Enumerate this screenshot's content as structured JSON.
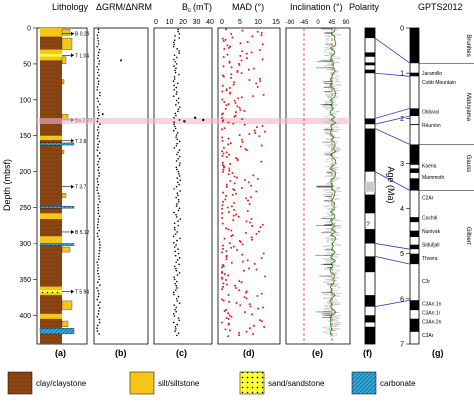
{
  "chart_data": [
    {
      "type": "scatter",
      "panel": "(a)",
      "title": "Lithology",
      "ylabel": "Depth (mbsf)",
      "ylim": [
        0,
        440
      ],
      "yticks": [
        0,
        50,
        100,
        150,
        200,
        250,
        300,
        350,
        400
      ],
      "units": [
        "I",
        "IIA",
        "IIB",
        "III",
        "IV",
        "V"
      ],
      "markers": [
        {
          "label": "B 0.29",
          "depth": 8
        },
        {
          "label": "T 1.04",
          "depth": 38
        },
        {
          "label": "Ba 2.27",
          "depth": 128
        },
        {
          "label": "T 2.8",
          "depth": 157
        },
        {
          "label": "T 3.7",
          "depth": 221
        },
        {
          "label": "B 5.12",
          "depth": 284
        },
        {
          "label": "T 5.94",
          "depth": 367
        }
      ],
      "legend": [
        "clay/claystone",
        "silt/siltstone",
        "sand/sandstone",
        "carbonate"
      ],
      "colors": {
        "clay": "#8B4513",
        "silt": "#F5C518",
        "sand": "#FFFF33",
        "carbonate": "#33A8DC"
      }
    },
    {
      "type": "scatter",
      "panel": "(b)",
      "title": "ΔGRM/ΔNRM",
      "xlim": [
        0,
        1
      ],
      "note": "values near zero; outliers at ~40-50 mbsf",
      "outliers": [
        {
          "x": 0.5,
          "depth": 45
        },
        {
          "x": 0.12,
          "depth": 120
        }
      ]
    },
    {
      "type": "scatter",
      "panel": "(c)",
      "title": "B",
      "title_sub": "c",
      "title_unit": "(mT)",
      "xticks": [
        0,
        10,
        20,
        30,
        40
      ],
      "xlim": [
        0,
        40
      ],
      "typical_range": [
        13,
        18
      ],
      "outliers": [
        {
          "x": 29,
          "depth": 125
        },
        {
          "x": 35,
          "depth": 128
        },
        {
          "x": 21,
          "depth": 130
        }
      ]
    },
    {
      "type": "scatter",
      "panel": "(d)",
      "title": "MAD (°)",
      "xticks": [
        0,
        5,
        10,
        15
      ],
      "xlim": [
        0,
        15
      ]
    },
    {
      "type": "line",
      "panel": "(e)",
      "title": "Inclination (°)",
      "xticks": [
        -90,
        -45,
        0,
        45,
        90
      ],
      "tick_labels": [
        "-90",
        "-45",
        "0",
        "45",
        "90"
      ],
      "xlim": [
        -90,
        90
      ],
      "reference_lines": [
        -45,
        45
      ],
      "legend": [],
      "series_colors": {
        "raw": "#bbbbbb",
        "mean": "#2e8b2e",
        "reference": "#d73027"
      }
    },
    {
      "type": "table",
      "panel": "(f)",
      "title": "Polarity",
      "query_label": "?",
      "age_label": "Age (Ma)",
      "age_ticks": [
        0,
        1,
        2,
        3,
        4,
        5,
        6,
        7
      ]
    },
    {
      "type": "table",
      "panel": "(g)",
      "title": "GPTS2012",
      "ylim": [
        0,
        7
      ],
      "yticks": [
        0,
        1,
        2,
        3,
        4,
        5,
        6,
        7
      ],
      "epochs": [
        "Brunhes",
        "Matuyama",
        "Gauss",
        "Gilbert"
      ],
      "subchrons": [
        "Jaramillo",
        "Cobb Mountain",
        "Olduvai",
        "Réunion",
        "Kaena",
        "Mammoth",
        "C2Ar",
        "Cochiti",
        "Nunivak",
        "Sidufjall",
        "Thvera",
        "C3r",
        "C3An.1n",
        "C3An.1r",
        "C3An.2n",
        "C3Ar"
      ]
    }
  ],
  "legend_items": [
    {
      "label": "clay/claystone",
      "color": "#8B4513",
      "pattern": "solid"
    },
    {
      "label": "silt/siltstone",
      "color": "#F5C518",
      "pattern": "solid"
    },
    {
      "label": "sand/sandstone",
      "color": "#FFFF33",
      "pattern": "dots"
    },
    {
      "label": "carbonate",
      "color": "#33A8DC",
      "pattern": "hatch"
    }
  ]
}
